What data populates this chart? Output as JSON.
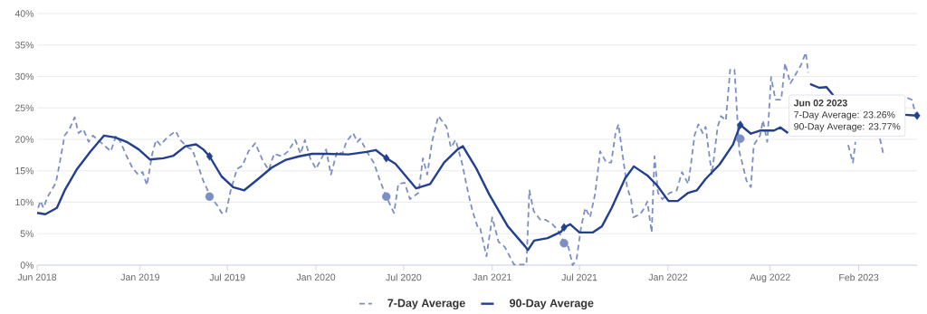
{
  "chart_data": {
    "type": "line",
    "xlim": [
      "2018-06-01",
      "2023-06-02"
    ],
    "xticks": [
      {
        "value": "2018-06-01",
        "label": "Jun 2018"
      },
      {
        "value": "2019-01-01",
        "label": "Jan 2019"
      },
      {
        "value": "2019-07-01",
        "label": "Jul 2019"
      },
      {
        "value": "2020-01-01",
        "label": "Jan 2020"
      },
      {
        "value": "2020-07-01",
        "label": "Jul 2020"
      },
      {
        "value": "2021-01-01",
        "label": "Jan 2021"
      },
      {
        "value": "2021-07-01",
        "label": "Jul 2021"
      },
      {
        "value": "2022-01-01",
        "label": "Jan 2022"
      },
      {
        "value": "2022-08-01",
        "label": "Aug 2022"
      },
      {
        "value": "2023-02-01",
        "label": "Feb 2023"
      }
    ],
    "ylim": [
      0,
      40
    ],
    "yticks": [
      {
        "value": 0,
        "label": "0%"
      },
      {
        "value": 5,
        "label": "5%"
      },
      {
        "value": 10,
        "label": "10%"
      },
      {
        "value": 15,
        "label": "15%"
      },
      {
        "value": 20,
        "label": "20%"
      },
      {
        "value": 25,
        "label": "25%"
      },
      {
        "value": 30,
        "label": "30%"
      },
      {
        "value": 35,
        "label": "35%"
      },
      {
        "value": 40,
        "label": "40%"
      }
    ],
    "grid": "y",
    "legend": "bottom",
    "series": [
      {
        "name": "7-Day Average",
        "color": "#7b8fc4",
        "line_style": "dashed",
        "marker": "none",
        "x": [
          "2018-06-03",
          "2018-06-08",
          "2018-06-14",
          "2018-06-23",
          "2018-07-10",
          "2018-07-19",
          "2018-07-28",
          "2018-08-07",
          "2018-08-18",
          "2018-08-26",
          "2018-09-05",
          "2018-09-16",
          "2018-09-25",
          "2018-11-01",
          "2018-11-12",
          "2018-11-21",
          "2018-12-04",
          "2018-12-17",
          "2018-12-28",
          "2019-01-06",
          "2019-01-15",
          "2019-01-26",
          "2019-02-03",
          "2019-02-12",
          "2019-02-26",
          "2019-03-16",
          "2019-03-25",
          "2019-04-10",
          "2019-04-19",
          "2019-04-29",
          "2019-05-12",
          "2019-05-27",
          "2019-06-10",
          "2019-06-19",
          "2019-06-28",
          "2019-07-08",
          "2019-07-21",
          "2019-08-01",
          "2019-08-14",
          "2019-08-28",
          "2019-09-12",
          "2019-09-25",
          "2019-10-06",
          "2019-10-23",
          "2019-11-04",
          "2019-11-19",
          "2019-11-30",
          "2019-12-09",
          "2019-12-20",
          "2020-01-01",
          "2020-01-22",
          "2020-02-01",
          "2020-02-14",
          "2020-02-25",
          "2020-03-04",
          "2020-03-18",
          "2020-03-27",
          "2020-04-02",
          "2020-04-15",
          "2020-04-30",
          "2020-05-13",
          "2020-05-26",
          "2020-06-11",
          "2020-06-20",
          "2020-07-03",
          "2020-07-14",
          "2020-08-01",
          "2020-08-10",
          "2020-08-19",
          "2020-08-29",
          "2020-09-11",
          "2020-09-28",
          "2020-10-07",
          "2020-10-17",
          "2020-10-30",
          "2020-11-12",
          "2020-11-21",
          "2020-12-01",
          "2020-12-06",
          "2020-12-20",
          "2021-01-01",
          "2021-01-14",
          "2021-01-27",
          "2021-02-15",
          "2021-03-13",
          "2021-03-19",
          "2021-03-28",
          "2021-04-11",
          "2021-04-22",
          "2021-05-05",
          "2021-05-18",
          "2021-05-29",
          "2021-06-08",
          "2021-06-17",
          "2021-06-25",
          "2021-07-04",
          "2021-07-13",
          "2021-07-23",
          "2021-08-03",
          "2021-08-13",
          "2021-08-26",
          "2021-09-05",
          "2021-09-14",
          "2021-09-20",
          "2021-09-29",
          "2021-10-08",
          "2021-10-16",
          "2021-10-21",
          "2021-11-04",
          "2021-11-13",
          "2021-11-19",
          "2021-11-28",
          "2021-12-04",
          "2021-12-11",
          "2021-12-20",
          "2022-01-05",
          "2022-01-19",
          "2022-01-30",
          "2022-02-12",
          "2022-02-18",
          "2022-02-25",
          "2022-03-05",
          "2022-03-14",
          "2022-03-20",
          "2022-04-02",
          "2022-04-14",
          "2022-04-21",
          "2022-05-01",
          "2022-05-10",
          "2022-05-19",
          "2022-05-29",
          "2022-06-13",
          "2022-06-22",
          "2022-06-28",
          "2022-07-11",
          "2022-07-17",
          "2022-07-26",
          "2022-08-03",
          "2022-08-12",
          "2022-08-24",
          "2022-09-01",
          "2022-09-12",
          "2022-09-25",
          "2022-10-04",
          "2022-10-14",
          "2022-10-19",
          "2022-12-01",
          "2023-01-10",
          "2023-01-20",
          "2023-01-25",
          "2023-02-20",
          "2023-03-17",
          "2023-03-24",
          "2023-04-04",
          "2023-04-24",
          "2023-05-13",
          "2023-05-22",
          "2023-06-02"
        ],
        "values": [
          9.1,
          10.2,
          9.1,
          10.9,
          13.1,
          16.7,
          20.6,
          21.6,
          23.5,
          21.0,
          21.6,
          19.6,
          20.6,
          18.1,
          20.6,
          19.6,
          17.3,
          15.3,
          14.4,
          14.8,
          12.7,
          17.7,
          19.9,
          19.1,
          20.3,
          21.3,
          19.9,
          18.7,
          18.4,
          16.3,
          13.4,
          10.9,
          9.5,
          8.3,
          8.3,
          11.9,
          15.3,
          15.8,
          18.1,
          19.4,
          16.7,
          15.1,
          17.7,
          17.3,
          18.1,
          19.9,
          17.7,
          19.9,
          17.0,
          15.3,
          18.4,
          14.4,
          18.1,
          17.7,
          19.6,
          21.0,
          19.6,
          20.1,
          18.1,
          16.3,
          13.4,
          10.9,
          8.3,
          12.9,
          13.1,
          10.5,
          11.5,
          17.0,
          14.4,
          19.6,
          23.7,
          22.0,
          18.7,
          19.9,
          16.3,
          11.5,
          8.6,
          6.2,
          6.2,
          1.4,
          7.6,
          3.7,
          2.9,
          0.1,
          0.1,
          11.9,
          8.6,
          7.2,
          7.2,
          6.6,
          5.5,
          3.7,
          2.9,
          0.0,
          0.9,
          5.8,
          9.1,
          7.6,
          11.5,
          18.1,
          16.3,
          16.3,
          21.0,
          22.4,
          17.3,
          12.4,
          10.5,
          7.6,
          8.1,
          9.1,
          10.1,
          5.2,
          17.3,
          11.5,
          10.5,
          11.5,
          11.9,
          14.8,
          12.9,
          16.3,
          20.6,
          22.4,
          21.0,
          22.0,
          14.4,
          22.0,
          23.7,
          23.0,
          31.1,
          31.1,
          18.1,
          13.4,
          12.4,
          19.1,
          20.6,
          23.0,
          19.6,
          29.9,
          26.3,
          26.3,
          32.1,
          28.9,
          30.6,
          31.8,
          33.8,
          30.6,
          null,
          19.1,
          16.3,
          19.6,
          null,
          20.1,
          17.7,
          null,
          null,
          26.6,
          26.3,
          23.26
        ]
      },
      {
        "name": "90-Day Average",
        "color": "#233f8f",
        "line_style": "solid",
        "marker": "none",
        "x": [
          "2018-06-01",
          "2018-06-18",
          "2018-07-12",
          "2018-07-29",
          "2018-08-23",
          "2018-09-20",
          "2018-10-18",
          "2018-11-10",
          "2018-12-04",
          "2018-12-29",
          "2019-01-21",
          "2019-02-18",
          "2019-03-11",
          "2019-04-05",
          "2019-04-27",
          "2019-05-12",
          "2019-05-25",
          "2019-06-19",
          "2019-07-13",
          "2019-08-05",
          "2019-09-03",
          "2019-10-01",
          "2019-10-29",
          "2019-11-27",
          "2019-12-24",
          "2020-01-22",
          "2020-03-09",
          "2020-04-15",
          "2020-05-04",
          "2020-05-26",
          "2020-06-14",
          "2020-07-27",
          "2020-08-25",
          "2020-09-23",
          "2020-10-21",
          "2020-11-01",
          "2020-11-28",
          "2020-12-26",
          "2021-02-02",
          "2021-03-10",
          "2021-03-16",
          "2021-03-29",
          "2021-04-26",
          "2021-05-24",
          "2021-05-30",
          "2021-06-12",
          "2021-07-01",
          "2021-07-29",
          "2021-08-17",
          "2021-09-06",
          "2021-10-04",
          "2021-10-22",
          "2021-11-20",
          "2021-12-09",
          "2022-01-02",
          "2022-01-21",
          "2022-02-12",
          "2022-03-02",
          "2022-03-20",
          "2022-04-18",
          "2022-05-16",
          "2022-05-31",
          "2022-06-22",
          "2022-07-11",
          "2022-08-09",
          "2022-08-22",
          "2022-09-07",
          "2022-09-25",
          "2022-10-14",
          "2022-10-23",
          "2022-11-11",
          "2022-11-26",
          "2022-12-10",
          "2023-03-01",
          "2023-05-08",
          "2023-06-02"
        ],
        "values": [
          8.3,
          8.1,
          9.1,
          12.0,
          15.3,
          18.1,
          20.6,
          20.3,
          19.6,
          18.4,
          16.8,
          17.0,
          17.4,
          18.9,
          19.2,
          18.4,
          17.3,
          14.1,
          12.4,
          11.9,
          13.7,
          15.5,
          16.7,
          17.3,
          17.7,
          17.7,
          17.6,
          18.0,
          18.3,
          17.0,
          16.1,
          12.2,
          12.9,
          16.3,
          18.4,
          18.9,
          15.5,
          11.2,
          6.2,
          3.0,
          2.4,
          3.9,
          4.3,
          5.3,
          6.0,
          6.5,
          5.2,
          5.2,
          6.2,
          9.1,
          13.8,
          15.7,
          14.2,
          12.7,
          10.2,
          10.2,
          11.5,
          11.9,
          13.7,
          16.0,
          19.2,
          22.3,
          20.9,
          21.4,
          21.4,
          21.9,
          21.0,
          null,
          null,
          28.8,
          28.2,
          28.3,
          27.0,
          null,
          23.9,
          23.77
        ]
      },
      {
        "type": "scatter",
        "color": "#233f8f",
        "marker": "diamond",
        "x": [
          "2019-05-25",
          "2020-05-26",
          "2021-05-30",
          "2022-05-31",
          "2023-06-02"
        ],
        "values": [
          17.3,
          17.0,
          6.0,
          22.3,
          23.77
        ]
      },
      {
        "type": "scatter",
        "color": "#7b8fc4",
        "marker": "circle",
        "x": [
          "2019-05-25",
          "2020-05-26",
          "2021-05-30",
          "2022-05-31"
        ],
        "values": [
          10.9,
          10.9,
          3.5,
          20.1
        ]
      }
    ],
    "annotations": [
      "Jun 02 2023",
      "7-Day Average: 23.26%",
      "90-Day Average: 23.77%"
    ]
  }
}
